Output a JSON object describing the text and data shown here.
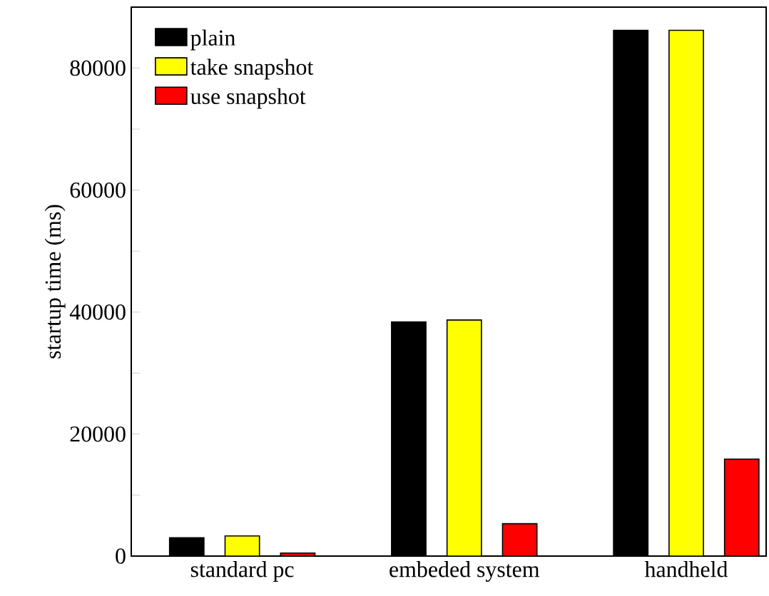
{
  "chart_data": {
    "type": "bar",
    "ylabel": "startup time (ms)",
    "categories": [
      "standard pc",
      "embeded system",
      "handheld"
    ],
    "series": [
      {
        "name": "plain",
        "color": "#000000",
        "values": [
          3000,
          38400,
          86200
        ]
      },
      {
        "name": "take snapshot",
        "color": "#ffff00",
        "values": [
          3300,
          38700,
          86200
        ]
      },
      {
        "name": "use snapshot",
        "color": "#ff0000",
        "values": [
          500,
          5300,
          15900
        ]
      }
    ],
    "ylim": [
      0,
      90000
    ],
    "yticks": [
      0,
      {
        "value": 10000,
        "label": null
      },
      20000,
      {
        "value": 30000,
        "label": null
      },
      40000,
      {
        "value": 50000,
        "label": null
      },
      60000,
      {
        "value": 70000,
        "label": null
      },
      80000
    ],
    "legend": "top left"
  }
}
